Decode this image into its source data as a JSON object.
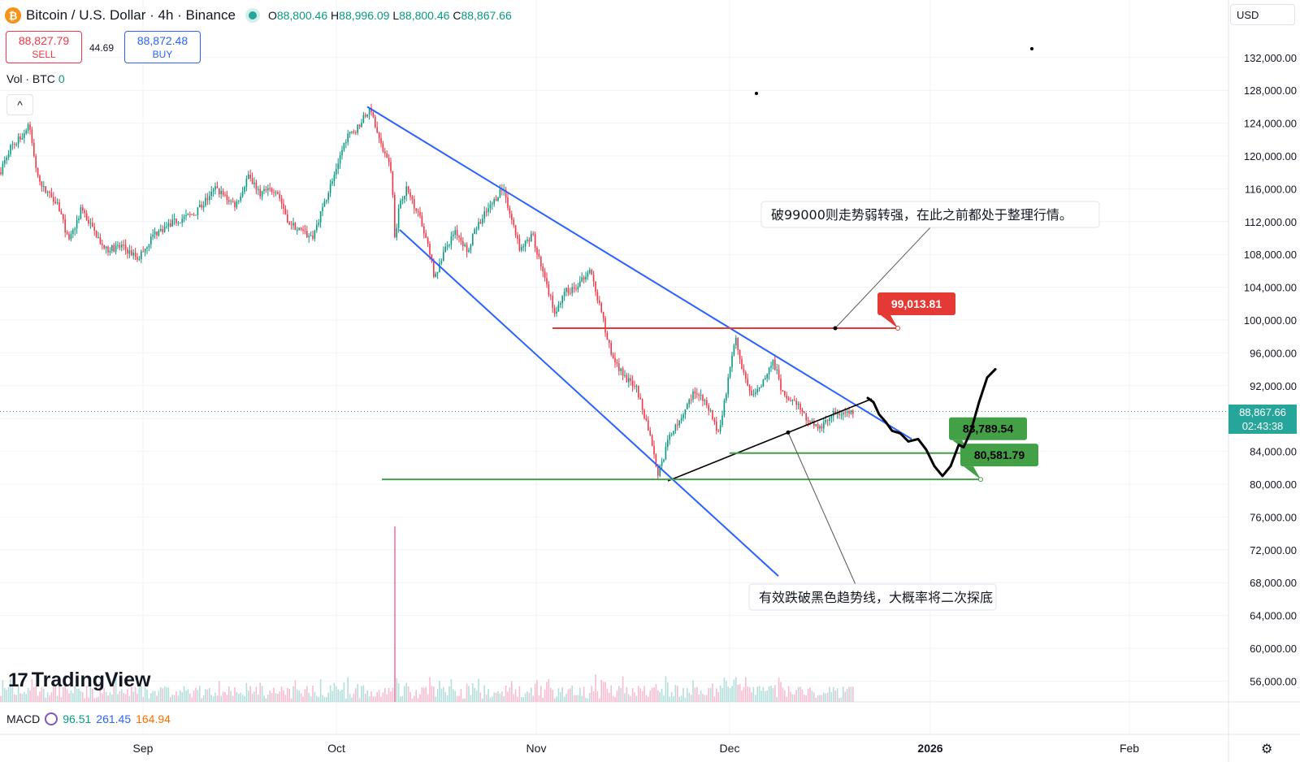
{
  "header": {
    "coin_symbol": "₿",
    "title": "Bitcoin / U.S. Dollar · 4h · Binance",
    "ohlc": [
      {
        "k": "O",
        "v": "88,800.46"
      },
      {
        "k": "H",
        "v": "88,996.09"
      },
      {
        "k": "L",
        "v": "88,800.46"
      },
      {
        "k": "C",
        "v": "88,867.66"
      }
    ]
  },
  "trade": {
    "sell_price": "88,827.79",
    "sell_label": "SELL",
    "spread": "44.69",
    "buy_price": "88,872.48",
    "buy_label": "BUY"
  },
  "volume_label": "Vol · BTC",
  "volume_value": "0",
  "collapse_icon": "^",
  "currency": "USD",
  "last_price": "88,867.66",
  "countdown": "02:43:38",
  "logo_text": "TradingView",
  "macd": {
    "label": "MACD",
    "v1": "96.51",
    "v2": "261.45",
    "v3": "164.94"
  },
  "settings_icon": "⚙",
  "colors": {
    "up": "#089981",
    "down": "#f23645",
    "trend": "#2962ff",
    "resistance": "#e53935",
    "support": "#43a047",
    "accent": "#26a69a"
  },
  "chart_data": {
    "type": "candlestick",
    "ylim": [
      54000,
      135000
    ],
    "y_ticks": [
      "56,000.00",
      "60,000.00",
      "64,000.00",
      "68,000.00",
      "72,000.00",
      "76,000.00",
      "80,000.00",
      "84,000.00",
      "88,000.00",
      "92,000.00",
      "96,000.00",
      "100,000.00",
      "104,000.00",
      "108,000.00",
      "112,000.00",
      "116,000.00",
      "120,000.00",
      "124,000.00",
      "128,000.00",
      "132,000.00"
    ],
    "x_ticks": [
      "Sep",
      "Oct",
      "Nov",
      "Dec",
      "2026",
      "Feb"
    ],
    "price_path": [
      [
        0,
        118000
      ],
      [
        12,
        121000
      ],
      [
        28,
        122500
      ],
      [
        35,
        124000
      ],
      [
        48,
        116500
      ],
      [
        70,
        114500
      ],
      [
        85,
        109500
      ],
      [
        100,
        113500
      ],
      [
        115,
        111000
      ],
      [
        130,
        108500
      ],
      [
        150,
        109000
      ],
      [
        170,
        107500
      ],
      [
        190,
        110500
      ],
      [
        215,
        112000
      ],
      [
        240,
        113000
      ],
      [
        265,
        116000
      ],
      [
        290,
        114000
      ],
      [
        305,
        117500
      ],
      [
        320,
        115500
      ],
      [
        340,
        116000
      ],
      [
        355,
        112000
      ],
      [
        375,
        110500
      ],
      [
        385,
        110200
      ],
      [
        400,
        114500
      ],
      [
        412,
        118000
      ],
      [
        425,
        122000
      ],
      [
        440,
        123500
      ],
      [
        455,
        125800
      ],
      [
        470,
        121000
      ],
      [
        482,
        118000
      ],
      [
        486,
        110000
      ],
      [
        492,
        114500
      ],
      [
        500,
        116000
      ],
      [
        515,
        113000
      ],
      [
        525,
        110000
      ],
      [
        535,
        105000
      ],
      [
        545,
        108000
      ],
      [
        560,
        111000
      ],
      [
        575,
        108500
      ],
      [
        590,
        112000
      ],
      [
        605,
        114000
      ],
      [
        618,
        116200
      ],
      [
        628,
        113000
      ],
      [
        640,
        108500
      ],
      [
        655,
        110500
      ],
      [
        670,
        105000
      ],
      [
        683,
        101000
      ],
      [
        697,
        103500
      ],
      [
        712,
        104000
      ],
      [
        725,
        106500
      ],
      [
        740,
        101000
      ],
      [
        752,
        96000
      ],
      [
        768,
        93000
      ],
      [
        783,
        92000
      ],
      [
        800,
        86000
      ],
      [
        810,
        81200
      ],
      [
        825,
        86000
      ],
      [
        840,
        88500
      ],
      [
        855,
        91500
      ],
      [
        870,
        90000
      ],
      [
        885,
        85800
      ],
      [
        895,
        92000
      ],
      [
        905,
        97800
      ],
      [
        915,
        93500
      ],
      [
        925,
        90500
      ],
      [
        940,
        92500
      ],
      [
        952,
        95000
      ],
      [
        965,
        90500
      ],
      [
        980,
        90000
      ],
      [
        995,
        87500
      ],
      [
        1010,
        86800
      ],
      [
        1025,
        88500
      ],
      [
        1040,
        88700
      ],
      [
        1052,
        88867
      ]
    ],
    "volume_spike_day_x": 486,
    "trend_lines": [
      {
        "name": "upper",
        "from": [
          452,
          126000
        ],
        "to": [
          1122,
          85500
        ]
      },
      {
        "name": "lower",
        "from": [
          492,
          111000
        ],
        "to": [
          958,
          68800
        ]
      },
      {
        "name": "black",
        "from": [
          822,
          80400
        ],
        "to": [
          1073,
          90400
        ]
      }
    ],
    "levels": [
      {
        "name": "resistance",
        "price": 99013.81,
        "label": "99,013.81",
        "x_from": 680,
        "x_to": 1105
      },
      {
        "name": "support1",
        "price": 83789.54,
        "label": "83,789.54",
        "x_from": 898,
        "x_to": 1193
      },
      {
        "name": "support2",
        "price": 80581.79,
        "label": "80,581.79",
        "x_from": 470,
        "x_to": 1207
      }
    ],
    "projection": [
      [
        1068,
        90500
      ],
      [
        1075,
        90000
      ],
      [
        1082,
        88500
      ],
      [
        1090,
        87600
      ],
      [
        1098,
        86500
      ],
      [
        1108,
        86200
      ],
      [
        1118,
        85200
      ],
      [
        1130,
        85500
      ],
      [
        1140,
        84200
      ],
      [
        1150,
        82200
      ],
      [
        1160,
        81000
      ],
      [
        1170,
        82200
      ],
      [
        1180,
        84800
      ],
      [
        1186,
        84500
      ],
      [
        1195,
        86500
      ],
      [
        1205,
        90000
      ],
      [
        1215,
        93000
      ],
      [
        1225,
        94000
      ]
    ],
    "annotations": [
      {
        "text": "破99000则走势弱转强，在此之前都处于整理行情。",
        "box_x": 937,
        "box_y": 248,
        "anchor": [
          1028,
          99013.81
        ]
      },
      {
        "text": "有效跌破黑色趋势线，大概率将二次探底",
        "box_x": 922,
        "box_y": 719,
        "anchor": [
          970,
          86300
        ]
      }
    ]
  }
}
